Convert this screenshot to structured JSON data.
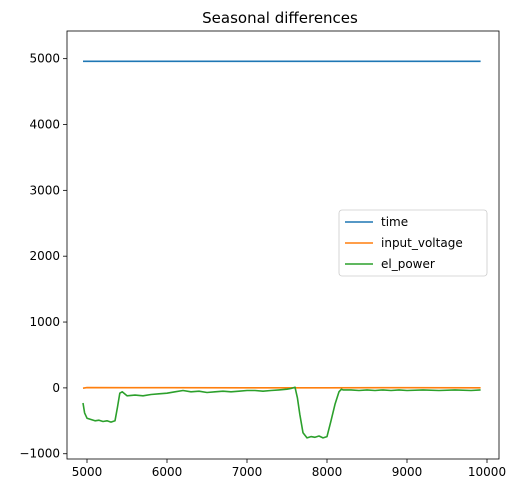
{
  "chart_data": {
    "type": "line",
    "title": "Seasonal differences",
    "xlabel": "",
    "ylabel": "",
    "xlim": [
      4750,
      10150
    ],
    "ylim": [
      -1080,
      5420
    ],
    "x_ticks": [
      5000,
      6000,
      7000,
      8000,
      9000,
      10000
    ],
    "y_ticks": [
      -1000,
      0,
      1000,
      2000,
      3000,
      4000,
      5000
    ],
    "grid": false,
    "legend_position": "center-right",
    "series": [
      {
        "name": "time",
        "color": "#1f77b4",
        "x": [
          4950,
          9920
        ],
        "y": [
          4960,
          4960
        ]
      },
      {
        "name": "input_voltage",
        "color": "#ff7f0e",
        "x": [
          4950,
          5000,
          6000,
          7000,
          8000,
          9000,
          9920
        ],
        "y": [
          -5,
          5,
          3,
          2,
          2,
          3,
          2
        ]
      },
      {
        "name": "el_power",
        "color": "#2ca02c",
        "x": [
          4950,
          4970,
          5000,
          5050,
          5100,
          5150,
          5200,
          5250,
          5300,
          5350,
          5380,
          5410,
          5440,
          5500,
          5600,
          5700,
          5800,
          5900,
          6000,
          6100,
          6200,
          6300,
          6400,
          6500,
          6600,
          6700,
          6800,
          6900,
          7000,
          7100,
          7200,
          7300,
          7400,
          7500,
          7550,
          7600,
          7630,
          7660,
          7700,
          7750,
          7800,
          7850,
          7900,
          7950,
          8000,
          8050,
          8100,
          8150,
          8180,
          8200,
          8300,
          8400,
          8500,
          8600,
          8700,
          8800,
          8900,
          9000,
          9200,
          9400,
          9600,
          9800,
          9920
        ],
        "y": [
          -230,
          -380,
          -460,
          -480,
          -500,
          -490,
          -510,
          -500,
          -520,
          -500,
          -300,
          -80,
          -60,
          -120,
          -110,
          -120,
          -100,
          -90,
          -80,
          -60,
          -40,
          -60,
          -50,
          -70,
          -60,
          -50,
          -60,
          -50,
          -40,
          -40,
          -50,
          -40,
          -30,
          -20,
          -10,
          10,
          -150,
          -400,
          -680,
          -760,
          -740,
          -750,
          -730,
          -760,
          -740,
          -500,
          -250,
          -60,
          -20,
          -30,
          -30,
          -40,
          -30,
          -40,
          -30,
          -40,
          -30,
          -40,
          -30,
          -40,
          -30,
          -40,
          -30
        ]
      }
    ]
  }
}
